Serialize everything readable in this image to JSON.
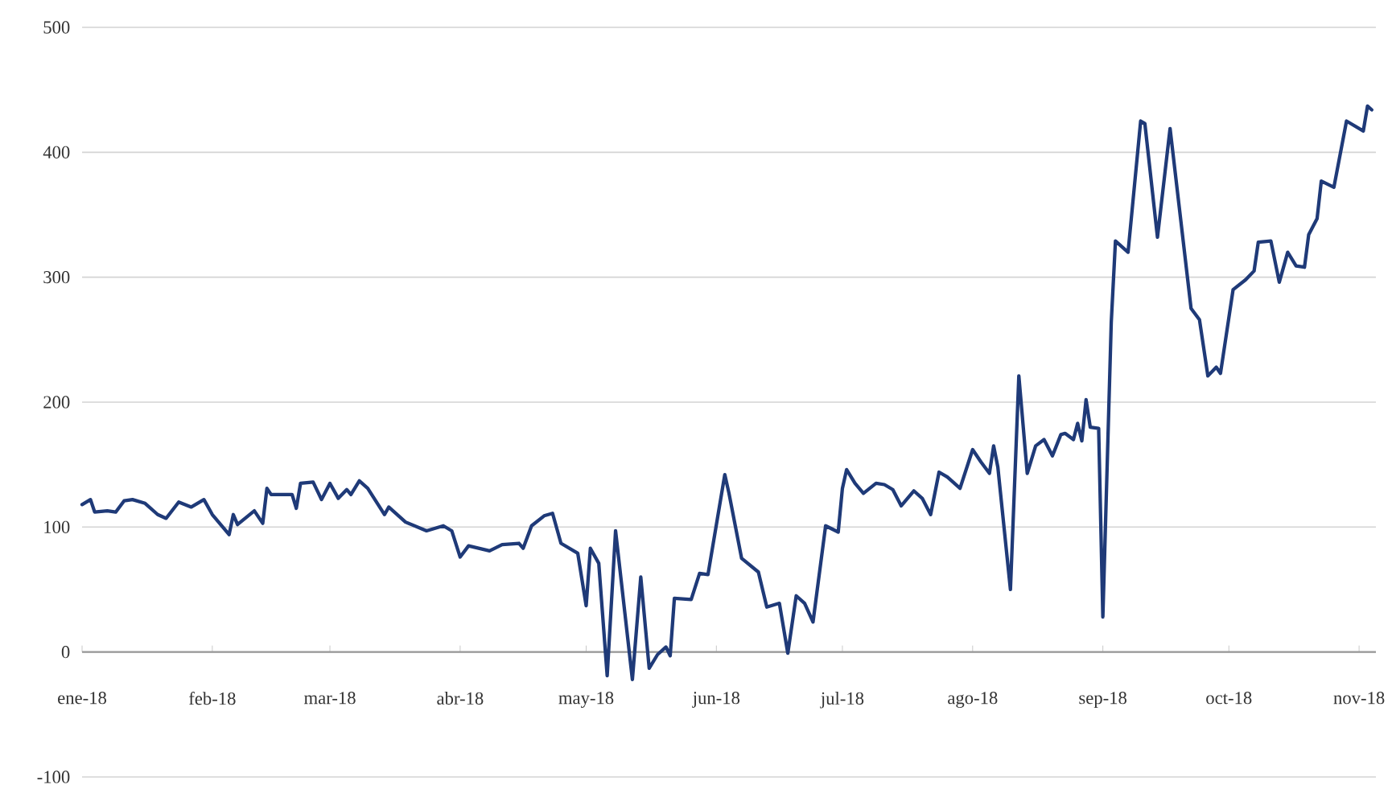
{
  "chart_data": {
    "type": "line",
    "xlim": [
      "2018-01-01",
      "2018-11-05"
    ],
    "ylim": [
      -100,
      500
    ],
    "xticks": [
      {
        "value": "2018-01-01",
        "label": "ene-18"
      },
      {
        "value": "2018-02-01",
        "label": "feb-18"
      },
      {
        "value": "2018-03-01",
        "label": "mar-18"
      },
      {
        "value": "2018-04-01",
        "label": "abr-18"
      },
      {
        "value": "2018-05-01",
        "label": "may-18"
      },
      {
        "value": "2018-06-01",
        "label": "jun-18"
      },
      {
        "value": "2018-07-01",
        "label": "jul-18"
      },
      {
        "value": "2018-08-01",
        "label": "ago-18"
      },
      {
        "value": "2018-09-01",
        "label": "sep-18"
      },
      {
        "value": "2018-10-01",
        "label": "oct-18"
      },
      {
        "value": "2018-11-01",
        "label": "nov-18"
      }
    ],
    "yticks": [
      -100,
      0,
      100,
      200,
      300,
      400,
      500
    ],
    "grid": "y",
    "line_style": "solid",
    "series": [
      {
        "color": "#1f3a78",
        "x": [
          "2018-01-01",
          "2018-01-03",
          "2018-01-04",
          "2018-01-07",
          "2018-01-09",
          "2018-01-11",
          "2018-01-13",
          "2018-01-16",
          "2018-01-19",
          "2018-01-21",
          "2018-01-24",
          "2018-01-27",
          "2018-01-30",
          "2018-02-01",
          "2018-02-05",
          "2018-02-06",
          "2018-02-07",
          "2018-02-11",
          "2018-02-13",
          "2018-02-14",
          "2018-02-15",
          "2018-02-20",
          "2018-02-21",
          "2018-02-22",
          "2018-02-25",
          "2018-02-27",
          "2018-03-01",
          "2018-03-03",
          "2018-03-05",
          "2018-03-06",
          "2018-03-08",
          "2018-03-10",
          "2018-03-14",
          "2018-03-15",
          "2018-03-19",
          "2018-03-24",
          "2018-03-28",
          "2018-03-30",
          "2018-04-01",
          "2018-04-03",
          "2018-04-08",
          "2018-04-11",
          "2018-04-15",
          "2018-04-16",
          "2018-04-18",
          "2018-04-21",
          "2018-04-23",
          "2018-04-25",
          "2018-04-29",
          "2018-05-01",
          "2018-05-02",
          "2018-05-04",
          "2018-05-06",
          "2018-05-08",
          "2018-05-12",
          "2018-05-14",
          "2018-05-16",
          "2018-05-18",
          "2018-05-20",
          "2018-05-21",
          "2018-05-22",
          "2018-05-26",
          "2018-05-28",
          "2018-05-30",
          "2018-06-03",
          "2018-06-04",
          "2018-06-07",
          "2018-06-11",
          "2018-06-13",
          "2018-06-16",
          "2018-06-18",
          "2018-06-20",
          "2018-06-22",
          "2018-06-24",
          "2018-06-27",
          "2018-06-30",
          "2018-07-01",
          "2018-07-02",
          "2018-07-04",
          "2018-07-06",
          "2018-07-09",
          "2018-07-11",
          "2018-07-13",
          "2018-07-15",
          "2018-07-18",
          "2018-07-20",
          "2018-07-22",
          "2018-07-24",
          "2018-07-26",
          "2018-07-29",
          "2018-08-01",
          "2018-08-03",
          "2018-08-05",
          "2018-08-06",
          "2018-08-07",
          "2018-08-10",
          "2018-08-12",
          "2018-08-14",
          "2018-08-16",
          "2018-08-18",
          "2018-08-20",
          "2018-08-22",
          "2018-08-23",
          "2018-08-25",
          "2018-08-26",
          "2018-08-27",
          "2018-08-28",
          "2018-08-29",
          "2018-08-31",
          "2018-09-01",
          "2018-09-03",
          "2018-09-04",
          "2018-09-07",
          "2018-09-10",
          "2018-09-11",
          "2018-09-14",
          "2018-09-17",
          "2018-09-22",
          "2018-09-24",
          "2018-09-26",
          "2018-09-28",
          "2018-09-29",
          "2018-10-02",
          "2018-10-05",
          "2018-10-07",
          "2018-10-08",
          "2018-10-11",
          "2018-10-13",
          "2018-10-15",
          "2018-10-17",
          "2018-10-19",
          "2018-10-20",
          "2018-10-22",
          "2018-10-23",
          "2018-10-26",
          "2018-10-29",
          "2018-11-02",
          "2018-11-03",
          "2018-11-04"
        ],
        "values": [
          118,
          122,
          112,
          113,
          112,
          121,
          122,
          119,
          110,
          107,
          120,
          116,
          122,
          110,
          94,
          110,
          102,
          113,
          103,
          131,
          126,
          126,
          115,
          135,
          136,
          122,
          135,
          123,
          130,
          126,
          137,
          131,
          110,
          116,
          104,
          97,
          101,
          97,
          76,
          85,
          81,
          86,
          87,
          83,
          101,
          109,
          111,
          87,
          79,
          37,
          83,
          71,
          -19,
          97,
          -22,
          60,
          -13,
          -2,
          4,
          -3,
          43,
          42,
          63,
          62,
          142,
          127,
          75,
          64,
          36,
          39,
          -1,
          45,
          39,
          24,
          101,
          96,
          131,
          146,
          135,
          127,
          135,
          134,
          130,
          117,
          129,
          123,
          110,
          144,
          140,
          131,
          162,
          152,
          143,
          165,
          148,
          50,
          221,
          143,
          165,
          170,
          157,
          174,
          175,
          170,
          183,
          169,
          202,
          180,
          179,
          28,
          264,
          329,
          320,
          425,
          423,
          332,
          419,
          275,
          266,
          221,
          228,
          223,
          290,
          298,
          305,
          328,
          329,
          296,
          320,
          309,
          308,
          334,
          347,
          377,
          372,
          425,
          417,
          437,
          434
        ]
      }
    ]
  }
}
